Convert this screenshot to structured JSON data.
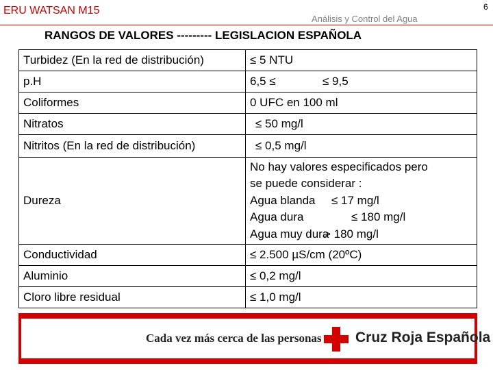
{
  "header": {
    "title": "ERU WATSAN M15",
    "subtitle": "Análisis y Control del Agua",
    "page_number": "6"
  },
  "title": "RANGOS DE VALORES --------- LEGISLACION ESPAÑOLA",
  "table": {
    "rows": [
      [
        "Turbidez (En la red de distribución)",
        [
          [
            "≤ 5 NTU"
          ]
        ]
      ],
      [
        "p.H",
        [
          [
            "6,5 ≤",
            "≤ 9,5"
          ]
        ]
      ],
      [
        "Coliformes",
        [
          [
            "0 UFC en 100 ml"
          ]
        ]
      ],
      [
        "Nitratos",
        [
          [
            "≤ 50 mg/l"
          ]
        ]
      ],
      [
        "Nitritos (En la red de distribución)",
        [
          [
            "≤ 0,5 mg/l"
          ]
        ]
      ],
      [
        "Dureza",
        [
          [
            "No hay valores especificados pero"
          ],
          [
            "se puede considerar :"
          ],
          [
            "Agua blanda",
            "≤ 17 mg/l"
          ],
          [
            "Agua dura",
            "≤ 180 mg/l"
          ],
          [
            "Agua muy dura",
            "> 180 mg/l"
          ]
        ]
      ],
      [
        "Conductividad",
        [
          [
            "≤ 2.500 µS/cm (20ºC)"
          ]
        ]
      ],
      [
        "Aluminio",
        [
          [
            "≤ 0,2 mg/l"
          ]
        ]
      ],
      [
        "Cloro libre residual",
        [
          [
            "≤ 1,0 mg/l"
          ]
        ]
      ]
    ]
  },
  "footer": {
    "slogan": "Cada vez más cerca de las personas",
    "brand": "Cruz Roja Española"
  }
}
